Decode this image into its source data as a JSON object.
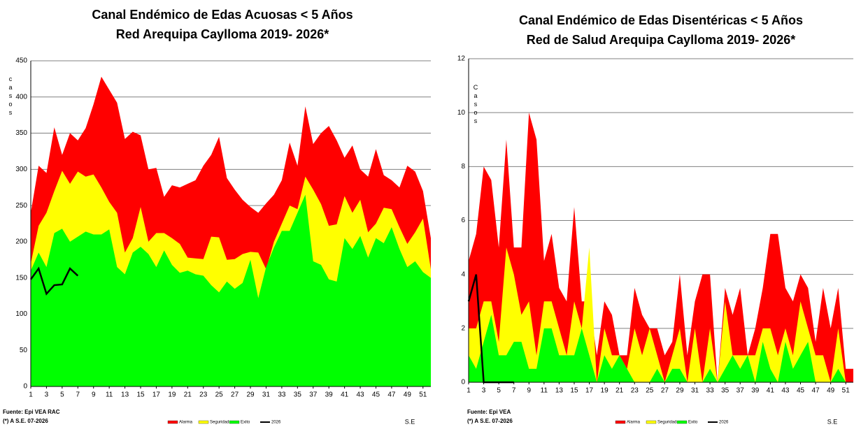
{
  "chart_data": [
    {
      "type": "area",
      "title": "Canal Endémico de Edas Acuosas  < 5 Años",
      "subtitle": "Red Arequipa Caylloma 2019- 2026*",
      "y_label": "casos",
      "x_label": "S.E",
      "source": "Fuente: Epi VEA RAC",
      "note": "(*) A S.E. 07-2026",
      "x": [
        1,
        2,
        3,
        4,
        5,
        6,
        7,
        8,
        9,
        10,
        11,
        12,
        13,
        14,
        15,
        16,
        17,
        18,
        19,
        20,
        21,
        22,
        23,
        24,
        25,
        26,
        27,
        28,
        29,
        30,
        31,
        32,
        33,
        34,
        35,
        36,
        37,
        38,
        39,
        40,
        41,
        42,
        43,
        44,
        45,
        46,
        47,
        48,
        49,
        50,
        51,
        52
      ],
      "xlim": [
        1,
        52
      ],
      "xticks": [
        1,
        3,
        5,
        7,
        9,
        11,
        13,
        15,
        17,
        19,
        21,
        23,
        25,
        27,
        29,
        31,
        33,
        35,
        37,
        39,
        41,
        43,
        45,
        47,
        49,
        51
      ],
      "ylim": [
        0,
        450
      ],
      "yticks": [
        0,
        50,
        100,
        150,
        200,
        250,
        300,
        350,
        400,
        450
      ],
      "grid": true,
      "series": [
        {
          "name": "Alarma",
          "color": "#ff0000",
          "values": [
            240,
            305,
            295,
            358,
            320,
            350,
            340,
            357,
            390,
            428,
            410,
            392,
            342,
            352,
            347,
            300,
            302,
            262,
            278,
            275,
            280,
            285,
            305,
            320,
            345,
            288,
            272,
            258,
            248,
            240,
            253,
            265,
            285,
            337,
            305,
            387,
            335,
            350,
            360,
            340,
            316,
            333,
            300,
            290,
            328,
            292,
            285,
            275,
            305,
            297,
            270,
            205
          ]
        },
        {
          "name": "Seguridad",
          "color": "#ffff00",
          "values": [
            170,
            222,
            240,
            270,
            298,
            280,
            297,
            290,
            293,
            275,
            255,
            240,
            185,
            205,
            248,
            200,
            212,
            212,
            205,
            197,
            178,
            177,
            176,
            207,
            206,
            175,
            176,
            183,
            186,
            185,
            162,
            200,
            225,
            250,
            245,
            290,
            272,
            252,
            222,
            224,
            263,
            240,
            258,
            213,
            225,
            247,
            245,
            220,
            197,
            213,
            232,
            162
          ]
        },
        {
          "name": "Exito",
          "color": "#00ff00",
          "values": [
            160,
            185,
            165,
            212,
            218,
            200,
            207,
            214,
            210,
            210,
            217,
            165,
            155,
            185,
            193,
            183,
            165,
            188,
            168,
            157,
            160,
            155,
            153,
            140,
            130,
            145,
            135,
            143,
            175,
            122,
            165,
            192,
            215,
            215,
            240,
            265,
            173,
            168,
            148,
            145,
            205,
            190,
            208,
            178,
            205,
            198,
            220,
            190,
            165,
            173,
            158,
            150
          ]
        },
        {
          "name": "2026",
          "color": "#000000",
          "type": "line",
          "values": [
            148,
            163,
            128,
            140,
            141,
            163,
            153,
            null,
            null,
            null,
            null,
            null,
            null,
            null,
            null,
            null,
            null,
            null,
            null,
            null,
            null,
            null,
            null,
            null,
            null,
            null,
            null,
            null,
            null,
            null,
            null,
            null,
            null,
            null,
            null,
            null,
            null,
            null,
            null,
            null,
            null,
            null,
            null,
            null,
            null,
            null,
            null,
            null,
            null,
            null,
            null,
            null
          ]
        }
      ]
    },
    {
      "type": "area",
      "title": "Canal Endémico de Edas Disentéricas  < 5 Años",
      "subtitle": "Red  de Salud Arequipa Caylloma 2019- 2026*",
      "y_label": "Casos",
      "x_label": "S.E",
      "source": "Fuente: Epi VEA",
      "note": "(*) A S.E. 07-2026",
      "x": [
        1,
        2,
        3,
        4,
        5,
        6,
        7,
        8,
        9,
        10,
        11,
        12,
        13,
        14,
        15,
        16,
        17,
        18,
        19,
        20,
        21,
        22,
        23,
        24,
        25,
        26,
        27,
        28,
        29,
        30,
        31,
        32,
        33,
        34,
        35,
        36,
        37,
        38,
        39,
        40,
        41,
        42,
        43,
        44,
        45,
        46,
        47,
        48,
        49,
        50,
        51,
        52
      ],
      "xlim": [
        1,
        52
      ],
      "xticks": [
        1,
        3,
        5,
        7,
        9,
        11,
        13,
        15,
        17,
        19,
        21,
        23,
        25,
        27,
        29,
        31,
        33,
        35,
        37,
        39,
        41,
        43,
        45,
        47,
        49,
        51
      ],
      "ylim": [
        0,
        12
      ],
      "yticks": [
        0,
        2,
        4,
        6,
        8,
        10,
        12
      ],
      "grid": true,
      "series": [
        {
          "name": "Alarma",
          "color": "#ff0000",
          "values": [
            4.5,
            5.5,
            8,
            7.5,
            5,
            9,
            5,
            5,
            10,
            9,
            4.5,
            5.5,
            3.5,
            3,
            6.5,
            3,
            3,
            1,
            3,
            2.5,
            1,
            1,
            3.5,
            2.5,
            2,
            2,
            1,
            1.5,
            4,
            1,
            3,
            4,
            4,
            0,
            3.5,
            2.5,
            3.5,
            1,
            2,
            3.5,
            5.5,
            5.5,
            3.5,
            3,
            4,
            3.5,
            1.5,
            3.5,
            2,
            3.5,
            0.5,
            0.5
          ]
        },
        {
          "name": "Seguridad",
          "color": "#ffff00",
          "values": [
            2,
            2,
            3,
            3,
            1.5,
            5,
            4,
            2.5,
            3,
            1,
            3,
            3,
            2,
            1,
            3,
            2,
            5,
            0,
            2,
            1,
            1,
            0.5,
            2,
            1,
            2,
            1,
            0,
            1,
            2,
            0,
            2,
            0,
            2,
            0,
            3,
            1,
            1,
            1,
            1,
            2,
            2,
            1,
            2,
            1,
            3,
            2,
            1,
            1,
            0,
            2,
            0,
            0
          ]
        },
        {
          "name": "Exito",
          "color": "#00ff00",
          "values": [
            1,
            0.5,
            1.5,
            2.5,
            1,
            1,
            1.5,
            1.5,
            0.5,
            0.5,
            2,
            2,
            1,
            1,
            1,
            2,
            1,
            0,
            1,
            0.5,
            1,
            0.5,
            0,
            0,
            0,
            0.5,
            0,
            0.5,
            0.5,
            0,
            0,
            0,
            0.5,
            0,
            0.5,
            1,
            0.5,
            1,
            0,
            1.5,
            0.5,
            0,
            1.5,
            0.5,
            1,
            1.5,
            0,
            0,
            0,
            0.5,
            0,
            0
          ]
        },
        {
          "name": "2026",
          "color": "#000000",
          "type": "line",
          "values": [
            3,
            4,
            0,
            0,
            0,
            0,
            0,
            null,
            null,
            null,
            null,
            null,
            null,
            null,
            null,
            null,
            null,
            null,
            null,
            null,
            null,
            null,
            null,
            null,
            null,
            null,
            null,
            null,
            null,
            null,
            null,
            null,
            null,
            null,
            null,
            null,
            null,
            null,
            null,
            null,
            null,
            null,
            null,
            null,
            null,
            null,
            null,
            null,
            null,
            null,
            null,
            null
          ]
        }
      ]
    }
  ]
}
